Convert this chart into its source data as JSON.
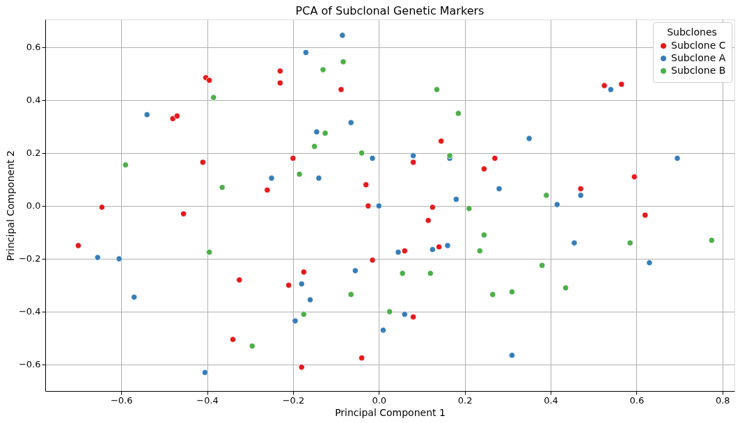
{
  "chart_data": {
    "type": "scatter",
    "title": "PCA of Subclonal Genetic Markers",
    "xlabel": "Principal Component 1",
    "ylabel": "Principal Component 2",
    "legend_title": "Subclones",
    "legend": "top right",
    "grid": true,
    "marker": "circle",
    "xlim": [
      -0.777,
      0.828
    ],
    "ylim": [
      -0.7,
      0.705
    ],
    "xticks": [
      {
        "value": -0.6,
        "label": "−0.6"
      },
      {
        "value": -0.4,
        "label": "−0.4"
      },
      {
        "value": -0.2,
        "label": "−0.2"
      },
      {
        "value": 0,
        "label": "0.0"
      },
      0.2,
      0.4,
      0.6,
      0.8
    ],
    "yticks": [
      {
        "value": -0.6,
        "label": "−0.6"
      },
      {
        "value": -0.4,
        "label": "−0.4"
      },
      {
        "value": -0.2,
        "label": "−0.2"
      },
      {
        "value": 0,
        "label": "0.0"
      },
      0.2,
      0.4,
      0.6
    ],
    "series": [
      {
        "name": "Subclone C",
        "color": "#e41a1c",
        "x": [
          -0.403,
          -0.395,
          -0.23,
          -0.23,
          -0.088,
          -0.48,
          -0.47,
          -0.41,
          -0.2,
          -0.26,
          -0.03,
          -0.025,
          -0.645,
          -0.455,
          -0.7,
          -0.325,
          -0.21,
          -0.175,
          -0.015,
          -0.34,
          -0.18,
          -0.04,
          0.145,
          0.08,
          0.27,
          0.245,
          0.125,
          0.115,
          0.14,
          0.06,
          0.08,
          0.525,
          0.565,
          0.47,
          0.595,
          0.62
        ],
        "values": [
          0.485,
          0.475,
          0.51,
          0.465,
          0.44,
          0.33,
          0.34,
          0.165,
          0.18,
          0.06,
          0.08,
          0.0,
          -0.005,
          -0.03,
          -0.15,
          -0.28,
          -0.3,
          -0.25,
          -0.205,
          -0.505,
          -0.61,
          -0.575,
          0.245,
          0.165,
          0.18,
          0.14,
          -0.005,
          -0.055,
          -0.155,
          -0.17,
          -0.42,
          0.455,
          0.46,
          0.065,
          0.11,
          -0.035
        ]
      },
      {
        "name": "Subclone A",
        "color": "#377eb8",
        "x": [
          -0.085,
          -0.17,
          -0.54,
          -0.145,
          -0.065,
          -0.25,
          -0.14,
          -0.015,
          0.0,
          -0.655,
          -0.605,
          -0.57,
          -0.055,
          -0.18,
          -0.16,
          -0.195,
          0.01,
          -0.405,
          0.08,
          0.165,
          0.35,
          0.54,
          0.695,
          0.28,
          0.18,
          0.47,
          0.415,
          0.045,
          0.125,
          0.16,
          0.455,
          0.63,
          0.06,
          0.31
        ],
        "values": [
          0.645,
          0.58,
          0.345,
          0.28,
          0.315,
          0.105,
          0.105,
          0.18,
          0.0,
          -0.195,
          -0.2,
          -0.345,
          -0.245,
          -0.295,
          -0.355,
          -0.435,
          -0.47,
          -0.63,
          0.19,
          0.18,
          0.255,
          0.44,
          0.18,
          0.065,
          0.025,
          0.04,
          0.005,
          -0.175,
          -0.165,
          -0.15,
          -0.14,
          -0.215,
          -0.41,
          -0.565
        ]
      },
      {
        "name": "Subclone B",
        "color": "#4daf4a",
        "x": [
          -0.083,
          -0.13,
          -0.385,
          -0.125,
          -0.15,
          -0.04,
          -0.59,
          -0.185,
          -0.365,
          0.135,
          0.185,
          0.165,
          0.39,
          0.21,
          0.245,
          0.235,
          0.585,
          0.775,
          0.38,
          0.055,
          0.12,
          0.435,
          0.31,
          0.265,
          0.025,
          -0.395,
          -0.065,
          -0.175,
          -0.295
        ],
        "values": [
          0.545,
          0.515,
          0.41,
          0.275,
          0.225,
          0.2,
          0.155,
          0.12,
          0.07,
          0.44,
          0.35,
          0.19,
          0.04,
          -0.01,
          -0.11,
          -0.17,
          -0.14,
          -0.13,
          -0.225,
          -0.255,
          -0.255,
          -0.31,
          -0.325,
          -0.335,
          -0.4,
          -0.175,
          -0.335,
          -0.41,
          -0.53
        ]
      }
    ]
  }
}
